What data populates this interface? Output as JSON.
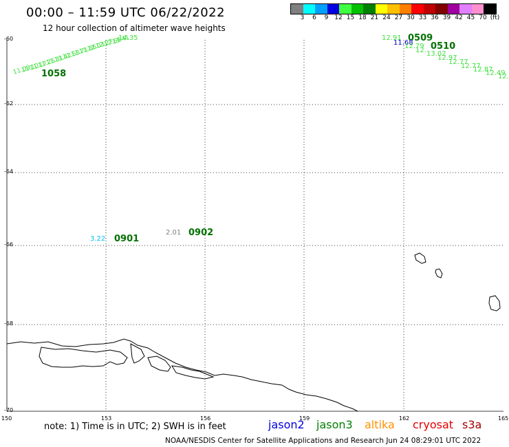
{
  "title": "00:00 – 11:59 UTC 06/22/2022",
  "subtitle": "12 hour collection of altimeter wave heights",
  "colorbar": {
    "colors": [
      "#808080",
      "#00ffff",
      "#00a0ff",
      "#0000e0",
      "#40ff40",
      "#00c000",
      "#008000",
      "#ffff00",
      "#ffc000",
      "#ff8000",
      "#ff0000",
      "#c00000",
      "#800000",
      "#a000a0",
      "#e080ff",
      "#ff90d0",
      "#000000"
    ],
    "labels": [
      "3",
      "6",
      "9",
      "12",
      "15",
      "18",
      "21",
      "24",
      "27",
      "30",
      "33",
      "36",
      "39",
      "42",
      "45",
      "70",
      "(ft)"
    ]
  },
  "axes": {
    "lat_labels": [
      "-60",
      "-62",
      "-64",
      "-66",
      "-68",
      "-70"
    ],
    "lon_labels": [
      "150",
      "153",
      "156",
      "159",
      "162",
      "165"
    ]
  },
  "passes": [
    {
      "id": "1058",
      "color": "#007000"
    },
    {
      "id": "0509",
      "color": "#007000"
    },
    {
      "id": "0510",
      "color": "#007000"
    },
    {
      "id": "0901",
      "color": "#007000"
    },
    {
      "id": "0902",
      "color": "#007000"
    }
  ],
  "points": [
    {
      "value": "3.22",
      "color": "#00c0ff"
    },
    {
      "value": "2.01",
      "color": "#808080"
    },
    {
      "value": "11.68",
      "color": "#0000c0"
    },
    {
      "value": "12.91",
      "color": "#40e040"
    },
    {
      "value": "12.79",
      "color": "#40e040"
    },
    {
      "value": "12.",
      "color": "#40e040"
    },
    {
      "value": "13.02",
      "color": "#40e040"
    },
    {
      "value": "12.97",
      "color": "#40e040"
    },
    {
      "value": "12.77",
      "color": "#40e040"
    },
    {
      "value": "12.77",
      "color": "#40e040"
    },
    {
      "value": "12.87",
      "color": "#40e040"
    },
    {
      "value": "12.49",
      "color": "#40e040"
    },
    {
      "value": "12.",
      "color": "#40e040"
    },
    {
      "value": "14.35",
      "color": "#40e040"
    }
  ],
  "note": "note: 1) Time is in UTC; 2) SWH is in feet",
  "satellites": [
    {
      "name": "jason2",
      "color": "#0000e0"
    },
    {
      "name": "jason3",
      "color": "#008000"
    },
    {
      "name": "altika",
      "color": "#ff9000"
    },
    {
      "name": "cryosat",
      "color": "#e00000"
    },
    {
      "name": "s3a",
      "color": "#a00000"
    }
  ],
  "footer": "NOAA/NESDIS Center for Satellite Applications and Research    Jun 24 08:29:01 UTC 2022"
}
